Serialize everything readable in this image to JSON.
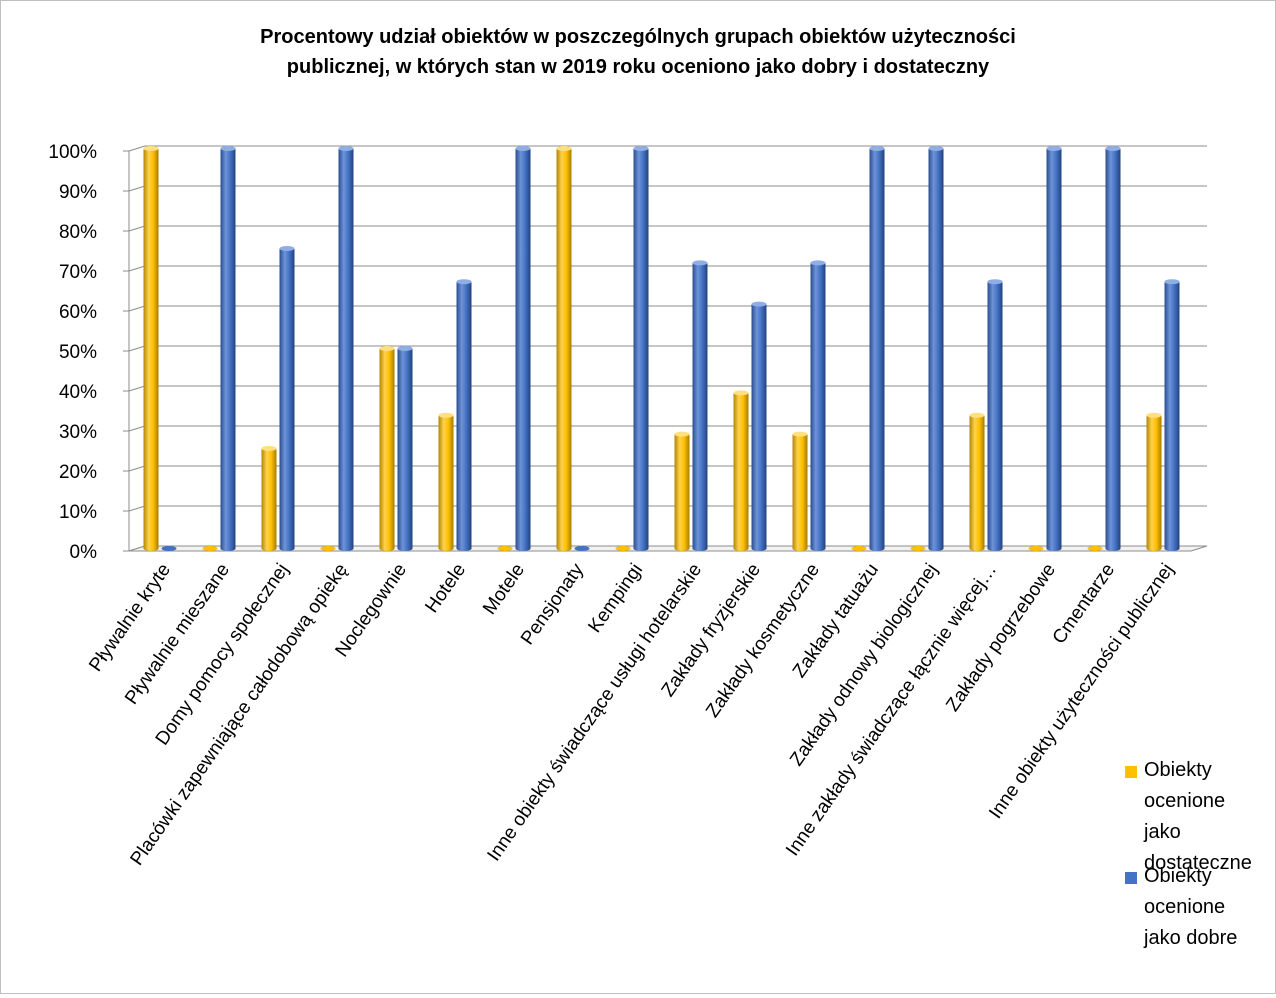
{
  "chart_data": {
    "type": "bar",
    "title": "Procentowy udział obiektów w poszczególnych grupach obiektów użyteczności publicznej, w których stan w 2019 roku oceniono jako dobry i dostateczny",
    "title_lines": [
      "Procentowy udział obiektów w poszczególnych grupach obiektów użyteczności",
      "publicznej, w których stan w 2019 roku oceniono jako dobry i dostateczny"
    ],
    "xlabel": "",
    "ylabel": "",
    "ylim": [
      0,
      100
    ],
    "yticks": [
      "0%",
      "10%",
      "20%",
      "30%",
      "40%",
      "50%",
      "60%",
      "70%",
      "80%",
      "90%",
      "100%"
    ],
    "grid": true,
    "legend_position": "bottom-right",
    "categories": [
      "Pływalnie kryte",
      "Pływalnie mieszane",
      "Domy pomocy społecznej",
      "Placówki zapewniające całodobową opiekę",
      "Noclegownie",
      "Hotele",
      "Motele",
      "Pensjonaty",
      "Kempingi",
      "Inne obiekty świadczące usługi hotelarskie",
      "Zakłady fryzjerskie",
      "Zakłady kosmetyczne",
      "Zakłady tatuażu",
      "Zakłady odnowy biologicznej",
      "Inne zakłady świadczące łącznie więcej…",
      "Zakłady pogrzebowe",
      "Cmentarze",
      "Inne obiekty użyteczności publicznej"
    ],
    "series": [
      {
        "name": "Obiekty ocenione jako dostateczne",
        "legend_lines": [
          "Obiekty",
          "ocenione",
          "jako",
          "dostateczne"
        ],
        "color": "#FFC000",
        "values": [
          100,
          0,
          25,
          0,
          50,
          33.3,
          0,
          100,
          0,
          28.6,
          38.9,
          28.6,
          0,
          0,
          33.3,
          0,
          0,
          33.3
        ]
      },
      {
        "name": "Obiekty ocenione jako dobre",
        "legend_lines": [
          "Obiekty",
          "ocenione",
          "jako dobre"
        ],
        "color": "#4472C4",
        "values": [
          0,
          100,
          75,
          100,
          50,
          66.7,
          100,
          0,
          100,
          71.4,
          61.1,
          71.4,
          100,
          100,
          66.7,
          100,
          100,
          66.7
        ]
      }
    ]
  }
}
